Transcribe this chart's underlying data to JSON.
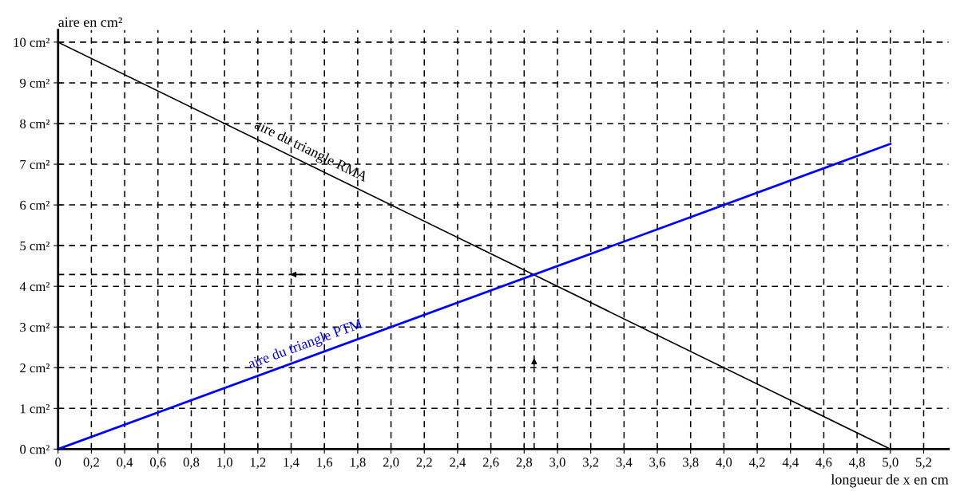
{
  "chart_data": {
    "type": "line",
    "xlabel": "longueur de x en cm",
    "ylabel": "aire en cm²",
    "x": [
      0,
      5
    ],
    "series": [
      {
        "name": "aire du triangle RMA",
        "color": "#000000",
        "values": [
          10,
          0
        ]
      },
      {
        "name": "aire du triangle PTM",
        "color": "#0000ff",
        "values": [
          0,
          7.5
        ]
      }
    ],
    "xlim": [
      0,
      5.35
    ],
    "ylim": [
      0,
      10.3
    ],
    "xticks": [
      0,
      {
        "value": 0.2,
        "label": "0,2"
      },
      {
        "value": 0.4,
        "label": "0,4"
      },
      {
        "value": 0.6,
        "label": "0,6"
      },
      {
        "value": 0.8,
        "label": "0,8"
      },
      {
        "value": 1.0,
        "label": "1,0"
      },
      {
        "value": 1.2,
        "label": "1,2"
      },
      {
        "value": 1.4,
        "label": "1,4"
      },
      {
        "value": 1.6,
        "label": "1,6"
      },
      {
        "value": 1.8,
        "label": "1,8"
      },
      {
        "value": 2.0,
        "label": "2,0"
      },
      {
        "value": 2.2,
        "label": "2,2"
      },
      {
        "value": 2.4,
        "label": "2,4"
      },
      {
        "value": 2.6,
        "label": "2,6"
      },
      {
        "value": 2.8,
        "label": "2,8"
      },
      {
        "value": 3.0,
        "label": "3,0"
      },
      {
        "value": 3.2,
        "label": "3,2"
      },
      {
        "value": 3.4,
        "label": "3,4"
      },
      {
        "value": 3.6,
        "label": "3,6"
      },
      {
        "value": 3.8,
        "label": "3,8"
      },
      {
        "value": 4.0,
        "label": "4,0"
      },
      {
        "value": 4.2,
        "label": "4,2"
      },
      {
        "value": 4.4,
        "label": "4,4"
      },
      {
        "value": 4.6,
        "label": "4,6"
      },
      {
        "value": 4.8,
        "label": "4,8"
      },
      {
        "value": 5.0,
        "label": "5,0"
      },
      {
        "value": 5.2,
        "label": "5,2"
      }
    ],
    "yticks": [
      {
        "value": 0,
        "label": "0 cm²"
      },
      {
        "value": 1,
        "label": "1 cm²"
      },
      {
        "value": 2,
        "label": "2 cm²"
      },
      {
        "value": 3,
        "label": "3 cm²"
      },
      {
        "value": 4,
        "label": "4 cm²"
      },
      {
        "value": 5,
        "label": "5 cm²"
      },
      {
        "value": 6,
        "label": "6 cm²"
      },
      {
        "value": 7,
        "label": "7 cm²"
      },
      {
        "value": 8,
        "label": "8 cm²"
      },
      {
        "value": 9,
        "label": "9 cm²"
      },
      {
        "value": 10,
        "label": "10 cm²"
      }
    ],
    "ref_lines": [
      {
        "axis": "x",
        "value": 2.86,
        "line_style": "dashed",
        "color": "#000000"
      },
      {
        "axis": "y",
        "value": 4.29,
        "line_style": "dashed",
        "color": "#000000"
      }
    ],
    "grid": true,
    "legend": false,
    "line_style": "solid"
  }
}
